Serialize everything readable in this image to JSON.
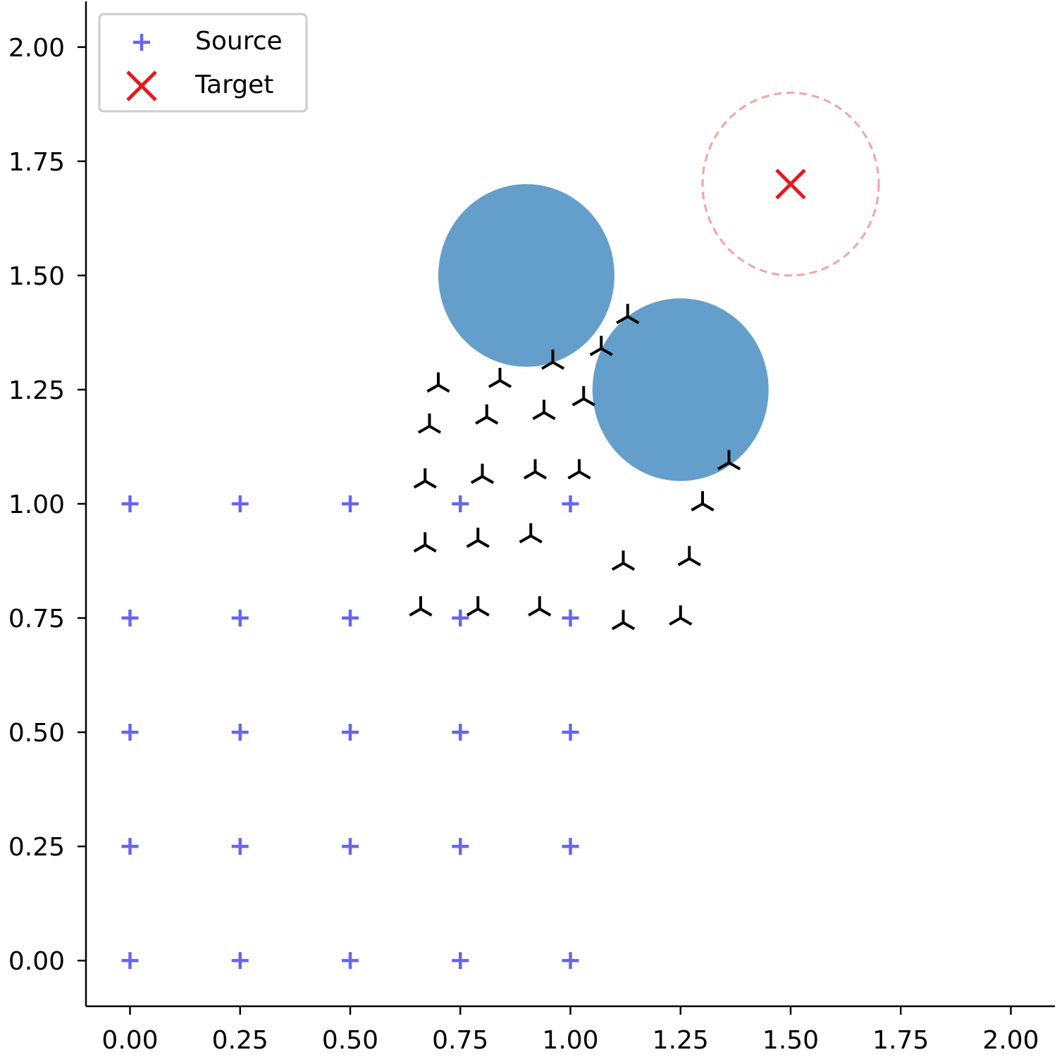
{
  "chart_data": {
    "type": "scatter",
    "title": "",
    "xlabel": "",
    "ylabel": "",
    "xlim": [
      -0.1,
      2.1
    ],
    "ylim": [
      -0.1,
      2.1
    ],
    "x_ticks": [
      "0.00",
      "0.25",
      "0.50",
      "0.75",
      "1.00",
      "1.25",
      "1.50",
      "1.75",
      "2.00"
    ],
    "y_ticks": [
      "0.00",
      "0.25",
      "0.50",
      "0.75",
      "1.00",
      "1.25",
      "1.50",
      "1.75",
      "2.00"
    ],
    "grid": false,
    "legend": {
      "position": "top-left",
      "entries": [
        {
          "label": "Source",
          "marker": "plus",
          "color": "#6666ee"
        },
        {
          "label": "Target",
          "marker": "x",
          "color": "#e31a1c"
        }
      ]
    },
    "series": [
      {
        "name": "Source",
        "marker": "plus",
        "color": "#6666ee",
        "points": [
          [
            0,
            0
          ],
          [
            0.25,
            0
          ],
          [
            0.5,
            0
          ],
          [
            0.75,
            0
          ],
          [
            1.0,
            0
          ],
          [
            0,
            0.25
          ],
          [
            0.25,
            0.25
          ],
          [
            0.5,
            0.25
          ],
          [
            0.75,
            0.25
          ],
          [
            1.0,
            0.25
          ],
          [
            0,
            0.5
          ],
          [
            0.25,
            0.5
          ],
          [
            0.5,
            0.5
          ],
          [
            0.75,
            0.5
          ],
          [
            1.0,
            0.5
          ],
          [
            0,
            0.75
          ],
          [
            0.25,
            0.75
          ],
          [
            0.5,
            0.75
          ],
          [
            0.75,
            0.75
          ],
          [
            1.0,
            0.75
          ],
          [
            0,
            1.0
          ],
          [
            0.25,
            1.0
          ],
          [
            0.5,
            1.0
          ],
          [
            0.75,
            1.0
          ],
          [
            1.0,
            1.0
          ]
        ]
      },
      {
        "name": "Target",
        "marker": "x",
        "color": "#e31a1c",
        "points": [
          [
            1.5,
            1.7
          ]
        ]
      },
      {
        "marker": "tri-down",
        "color": "#000000",
        "points": [
          [
            0.66,
            0.77
          ],
          [
            0.79,
            0.77
          ],
          [
            0.93,
            0.77
          ],
          [
            1.12,
            0.74
          ],
          [
            1.25,
            0.75
          ],
          [
            0.67,
            0.91
          ],
          [
            0.79,
            0.92
          ],
          [
            0.91,
            0.93
          ],
          [
            1.12,
            0.87
          ],
          [
            1.27,
            0.88
          ],
          [
            0.67,
            1.05
          ],
          [
            0.8,
            1.06
          ],
          [
            0.92,
            1.07
          ],
          [
            1.02,
            1.07
          ],
          [
            1.3,
            1.0
          ],
          [
            1.36,
            1.09
          ],
          [
            0.68,
            1.17
          ],
          [
            0.81,
            1.19
          ],
          [
            0.94,
            1.2
          ],
          [
            1.03,
            1.23
          ],
          [
            0.7,
            1.26
          ],
          [
            0.84,
            1.27
          ],
          [
            0.96,
            1.31
          ],
          [
            1.07,
            1.34
          ],
          [
            1.13,
            1.41
          ]
        ]
      }
    ],
    "obstacles": [
      {
        "center": [
          0.9,
          1.5
        ],
        "radius": 0.2,
        "color": "#4f92c4"
      },
      {
        "center": [
          1.25,
          1.25
        ],
        "radius": 0.2,
        "color": "#4f92c4"
      }
    ],
    "target_region": {
      "center": [
        1.5,
        1.7
      ],
      "radius": 0.2,
      "color": "#f4a3a3",
      "style": "dashed"
    }
  }
}
